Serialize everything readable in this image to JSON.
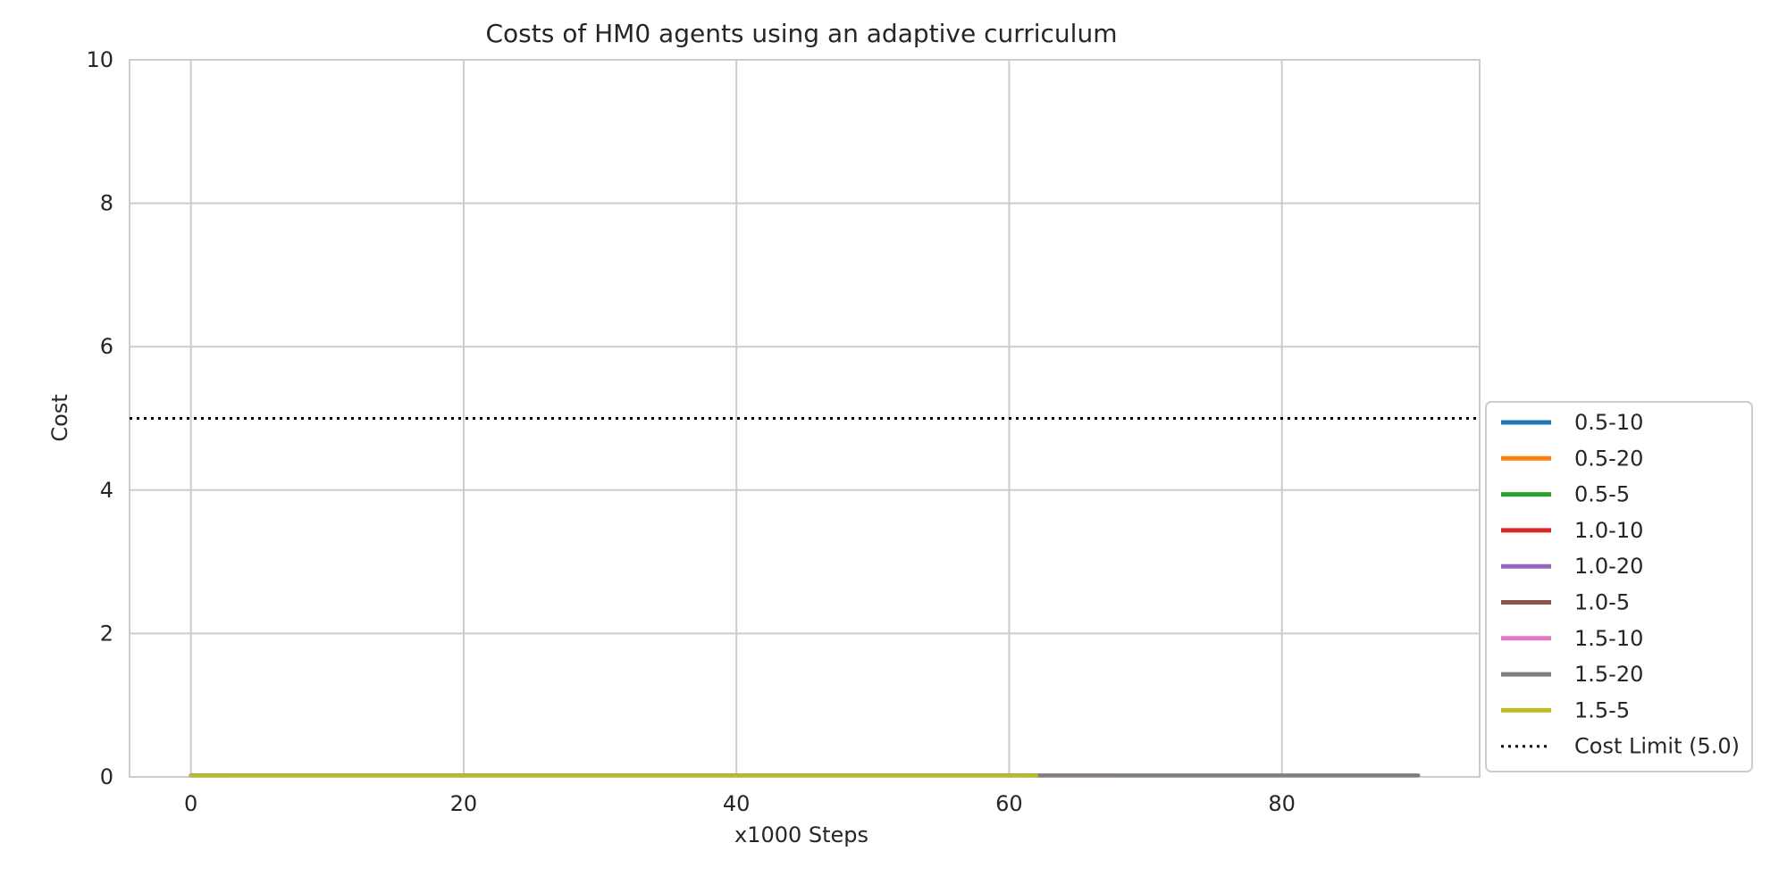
{
  "chart_data": {
    "type": "line",
    "title": "Costs of HM0 agents using an adaptive curriculum",
    "xlabel": "x1000 Steps",
    "ylabel": "Cost",
    "xlim": [
      -4.5,
      94.5
    ],
    "ylim": [
      0,
      10
    ],
    "x_ticks": [
      0,
      20,
      40,
      60,
      80
    ],
    "y_ticks": [
      0,
      2,
      4,
      6,
      8,
      10
    ],
    "grid": true,
    "legend_position": "lower-right outside",
    "reference_line": {
      "name": "Cost Limit (5.0)",
      "y": 5.0,
      "color": "#000000",
      "style": "dotted"
    },
    "series": [
      {
        "name": "0.5-10",
        "color": "#1f77b4",
        "x": [
          0,
          90
        ],
        "y": [
          0.02,
          0.02
        ]
      },
      {
        "name": "0.5-20",
        "color": "#ff7f0e",
        "x": [
          0,
          90
        ],
        "y": [
          0.02,
          0.02
        ]
      },
      {
        "name": "0.5-5",
        "color": "#2ca02c",
        "x": [
          0,
          62
        ],
        "y": [
          0.02,
          0.02
        ]
      },
      {
        "name": "1.0-10",
        "color": "#d62728",
        "x": [
          0,
          90
        ],
        "y": [
          0.02,
          0.02
        ]
      },
      {
        "name": "1.0-20",
        "color": "#9467bd",
        "x": [
          0,
          90
        ],
        "y": [
          0.02,
          0.02
        ]
      },
      {
        "name": "1.0-5",
        "color": "#8c564b",
        "x": [
          0,
          68
        ],
        "y": [
          0.02,
          0.02
        ]
      },
      {
        "name": "1.5-10",
        "color": "#e377c2",
        "x": [
          0,
          90
        ],
        "y": [
          0.02,
          0.02
        ]
      },
      {
        "name": "1.5-20",
        "color": "#7f7f7f",
        "x": [
          0,
          90
        ],
        "y": [
          0.02,
          0.02
        ]
      },
      {
        "name": "1.5-5",
        "color": "#bcbd22",
        "x": [
          0,
          62
        ],
        "y": [
          0.02,
          0.02
        ]
      }
    ]
  }
}
